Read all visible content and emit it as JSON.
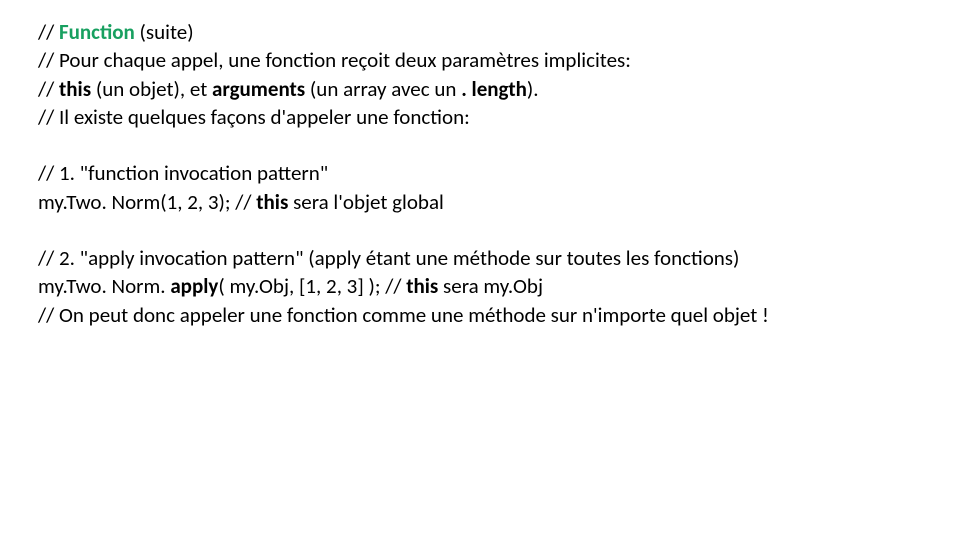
{
  "p1": {
    "l1a": "// ",
    "l1b": "Function",
    "l1c": " (suite)",
    "l2": "// Pour chaque appel, une fonction reçoit deux paramètres implicites:",
    "l3a": "// ",
    "l3b": "this",
    "l3c": " (un objet), et ",
    "l3d": "arguments",
    "l3e": " (un array avec un ",
    "l3f": ". length",
    "l3g": ").",
    "l4": "// Il existe quelques façons d'appeler une fonction:"
  },
  "p2": {
    "l1": "// 1. \"function invocation pattern\"",
    "l2a": "my.Two. Norm(1, 2, 3); // ",
    "l2b": "this",
    "l2c": " sera l'objet global"
  },
  "p3": {
    "l1": "// 2. \"apply invocation pattern\" (apply étant une méthode sur toutes les fonctions)",
    "l2a": "my.Two. Norm. ",
    "l2b": "apply",
    "l2c": "( my.Obj, [1, 2, 3] ); // ",
    "l2d": "this",
    "l2e": " sera my.Obj",
    "l3": "// On peut donc appeler une fonction comme une méthode sur n'importe quel objet !"
  }
}
